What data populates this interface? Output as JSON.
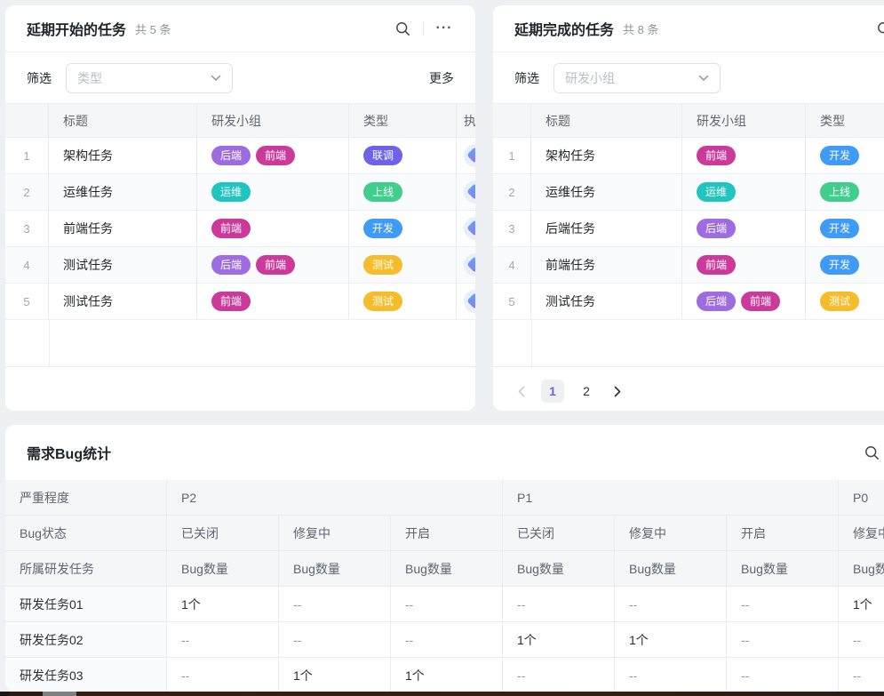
{
  "tag_colors": {
    "后端": "#9d6ce0",
    "前端": "#cb3a9b",
    "运维": "#20c5c0",
    "联调": "#6e63e8",
    "上线": "#40ce8d",
    "开发": "#3f9bf5",
    "测试": "#f5bd2b"
  },
  "delayed_start": {
    "title": "延期开始的任务",
    "count": "共 5 条",
    "filter_label": "筛选",
    "filter_placeholder": "类型",
    "more_label": "更多",
    "columns": [
      "",
      "标题",
      "研发小组",
      "类型",
      "执行人"
    ],
    "rows": [
      {
        "index": "1",
        "title": "架构任务",
        "groups": [
          "后端",
          "前端"
        ],
        "type": "联调"
      },
      {
        "index": "2",
        "title": "运维任务",
        "groups": [
          "运维"
        ],
        "type": "上线"
      },
      {
        "index": "3",
        "title": "前端任务",
        "groups": [
          "前端"
        ],
        "type": "开发"
      },
      {
        "index": "4",
        "title": "测试任务",
        "groups": [
          "后端",
          "前端"
        ],
        "type": "测试"
      },
      {
        "index": "5",
        "title": "测试任务",
        "groups": [
          "前端"
        ],
        "type": "测试"
      }
    ]
  },
  "delayed_done": {
    "title": "延期完成的任务",
    "count": "共 8 条",
    "filter_label": "筛选",
    "filter_placeholder": "研发小组",
    "columns": [
      "",
      "标题",
      "研发小组",
      "类型"
    ],
    "rows": [
      {
        "index": "1",
        "title": "架构任务",
        "groups": [
          "前端"
        ],
        "type": "开发"
      },
      {
        "index": "2",
        "title": "运维任务",
        "groups": [
          "运维"
        ],
        "type": "上线"
      },
      {
        "index": "3",
        "title": "后端任务",
        "groups": [
          "后端"
        ],
        "type": "开发"
      },
      {
        "index": "4",
        "title": "前端任务",
        "groups": [
          "前端"
        ],
        "type": "开发"
      },
      {
        "index": "5",
        "title": "测试任务",
        "groups": [
          "后端",
          "前端"
        ],
        "type": "测试"
      }
    ],
    "pagination": {
      "pages": [
        "1",
        "2"
      ],
      "active": "1"
    }
  },
  "bug_stats": {
    "title": "需求Bug统计",
    "severity_label": "严重程度",
    "status_label": "Bug状态",
    "task_label": "所属研发任务",
    "count_header": "Bug数量",
    "severities": [
      {
        "label": "P2",
        "statuses": [
          "已关闭",
          "修复中",
          "开启"
        ]
      },
      {
        "label": "P1",
        "statuses": [
          "已关闭",
          "修复中",
          "开启"
        ]
      },
      {
        "label": "P0",
        "statuses": [
          "修复中"
        ]
      }
    ],
    "rows": [
      {
        "label": "研发任务01",
        "values": [
          "1个",
          "--",
          "--",
          "--",
          "--",
          "--",
          "1个"
        ]
      },
      {
        "label": "研发任务02",
        "values": [
          "--",
          "--",
          "--",
          "1个",
          "1个",
          "--",
          "--"
        ]
      },
      {
        "label": "研发任务03",
        "values": [
          "--",
          "1个",
          "1个",
          "--",
          "--",
          "--",
          "--"
        ]
      }
    ]
  }
}
